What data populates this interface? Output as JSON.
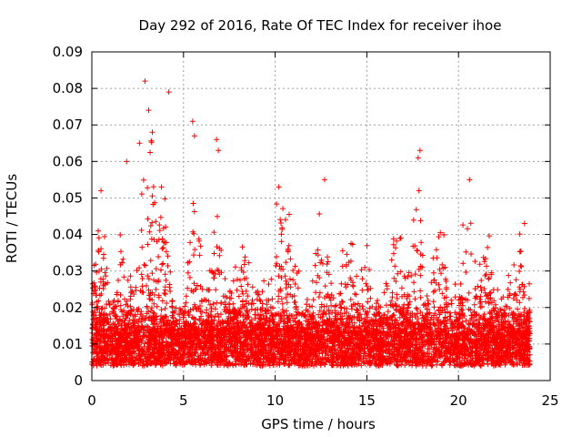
{
  "chart_data": {
    "type": "scatter",
    "title": "Day 292 of 2016, Rate Of TEC Index for receiver ihoe",
    "xlabel": "GPS time / hours",
    "ylabel": "ROTI / TECUs",
    "xlim": [
      0,
      25
    ],
    "ylim": [
      0,
      0.09
    ],
    "xticks": [
      0,
      5,
      10,
      15,
      20,
      25
    ],
    "xtick_labels": [
      "0",
      "5",
      "10",
      "15",
      "20",
      "25"
    ],
    "yticks": [
      0,
      0.01,
      0.02,
      0.03,
      0.04,
      0.05,
      0.06,
      0.07,
      0.08,
      0.09
    ],
    "ytick_labels": [
      "0",
      "0.01",
      "0.02",
      "0.03",
      "0.04",
      "0.05",
      "0.06",
      "0.07",
      "0.08",
      "0.09"
    ],
    "grid": true,
    "marker": "+",
    "color": "#ff0000",
    "data_coverage_hours": [
      0,
      23.9
    ],
    "series": [
      {
        "name": "ROTI",
        "baseline_band": [
          0.004,
          0.02
        ],
        "notable_points": [
          {
            "x": 2.9,
            "y": 0.082
          },
          {
            "x": 4.2,
            "y": 0.079
          },
          {
            "x": 3.1,
            "y": 0.074
          },
          {
            "x": 5.5,
            "y": 0.071
          },
          {
            "x": 3.3,
            "y": 0.068
          },
          {
            "x": 5.6,
            "y": 0.067
          },
          {
            "x": 6.8,
            "y": 0.066
          },
          {
            "x": 6.9,
            "y": 0.063
          },
          {
            "x": 17.9,
            "y": 0.063
          },
          {
            "x": 17.8,
            "y": 0.061
          },
          {
            "x": 2.6,
            "y": 0.065
          },
          {
            "x": 20.6,
            "y": 0.055
          },
          {
            "x": 12.7,
            "y": 0.055
          },
          {
            "x": 1.9,
            "y": 0.06
          },
          {
            "x": 3.8,
            "y": 0.053
          },
          {
            "x": 0.5,
            "y": 0.052
          },
          {
            "x": 10.2,
            "y": 0.053
          },
          {
            "x": 23.6,
            "y": 0.043
          }
        ]
      }
    ]
  }
}
